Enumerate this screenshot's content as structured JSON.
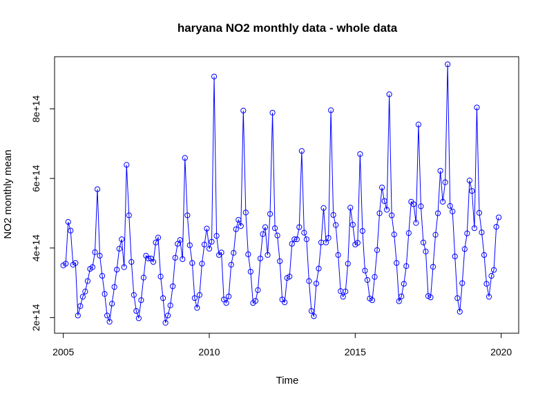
{
  "chart_data": {
    "type": "line",
    "title": "haryana NO2 monthly data - whole data",
    "xlabel": "Time",
    "ylabel": "NO2 monthly mean",
    "xlim": [
      2004.7,
      2020.6
    ],
    "ylim": [
      155000000000000.0,
      950000000000000.0
    ],
    "x_ticks": [
      2005,
      2010,
      2015,
      2020
    ],
    "x_tick_labels": [
      "2005",
      "2010",
      "2015",
      "2020"
    ],
    "y_ticks": [
      200000000000000.0,
      400000000000000.0,
      600000000000000.0,
      800000000000000.0
    ],
    "y_tick_labels": [
      "2e+14",
      "4e+14",
      "6e+14",
      "8e+14"
    ],
    "x_start": 2005,
    "x_step": 0.08333333,
    "series": [
      {
        "color": "#0000ff",
        "markers": "open-circle",
        "values": [
          350000000000000.0,
          355000000000000.0,
          475000000000000.0,
          450000000000000.0,
          352000000000000.0,
          357000000000000.0,
          206000000000000.0,
          233000000000000.0,
          260000000000000.0,
          275000000000000.0,
          305000000000000.0,
          340000000000000.0,
          345000000000000.0,
          388000000000000.0,
          569000000000000.0,
          378000000000000.0,
          320000000000000.0,
          268000000000000.0,
          206000000000000.0,
          188000000000000.0,
          240000000000000.0,
          288000000000000.0,
          338000000000000.0,
          398000000000000.0,
          425000000000000.0,
          345000000000000.0,
          639000000000000.0,
          494000000000000.0,
          360000000000000.0,
          265000000000000.0,
          219000000000000.0,
          198000000000000.0,
          250000000000000.0,
          315000000000000.0,
          378000000000000.0,
          370000000000000.0,
          370000000000000.0,
          360000000000000.0,
          416000000000000.0,
          430000000000000.0,
          318000000000000.0,
          256000000000000.0,
          185000000000000.0,
          206000000000000.0,
          235000000000000.0,
          290000000000000.0,
          372000000000000.0,
          412000000000000.0,
          423000000000000.0,
          368000000000000.0,
          659000000000000.0,
          494000000000000.0,
          408000000000000.0,
          357000000000000.0,
          256000000000000.0,
          228000000000000.0,
          265000000000000.0,
          355000000000000.0,
          410000000000000.0,
          456000000000000.0,
          398000000000000.0,
          418000000000000.0,
          893000000000000.0,
          435000000000000.0,
          380000000000000.0,
          387000000000000.0,
          252000000000000.0,
          242000000000000.0,
          261000000000000.0,
          352000000000000.0,
          386000000000000.0,
          454000000000000.0,
          481000000000000.0,
          463000000000000.0,
          795000000000000.0,
          502000000000000.0,
          382000000000000.0,
          332000000000000.0,
          242000000000000.0,
          248000000000000.0,
          279000000000000.0,
          370000000000000.0,
          440000000000000.0,
          460000000000000.0,
          380000000000000.0,
          498000000000000.0,
          789000000000000.0,
          457000000000000.0,
          436000000000000.0,
          362000000000000.0,
          252000000000000.0,
          244000000000000.0,
          314000000000000.0,
          318000000000000.0,
          412000000000000.0,
          425000000000000.0,
          425000000000000.0,
          460000000000000.0,
          679000000000000.0,
          444000000000000.0,
          425000000000000.0,
          305000000000000.0,
          219000000000000.0,
          204000000000000.0,
          298000000000000.0,
          341000000000000.0,
          416000000000000.0,
          515000000000000.0,
          416000000000000.0,
          429000000000000.0,
          796000000000000.0,
          495000000000000.0,
          466000000000000.0,
          380000000000000.0,
          276000000000000.0,
          260000000000000.0,
          275000000000000.0,
          355000000000000.0,
          516000000000000.0,
          467000000000000.0,
          410000000000000.0,
          415000000000000.0,
          670000000000000.0,
          449000000000000.0,
          335000000000000.0,
          308000000000000.0,
          255000000000000.0,
          250000000000000.0,
          317000000000000.0,
          394000000000000.0,
          500000000000000.0,
          574000000000000.0,
          535000000000000.0,
          510000000000000.0,
          842000000000000.0,
          494000000000000.0,
          439000000000000.0,
          357000000000000.0,
          247000000000000.0,
          261000000000000.0,
          297000000000000.0,
          348000000000000.0,
          443000000000000.0,
          533000000000000.0,
          526000000000000.0,
          472000000000000.0,
          755000000000000.0,
          520000000000000.0,
          416000000000000.0,
          390000000000000.0,
          262000000000000.0,
          258000000000000.0,
          346000000000000.0,
          438000000000000.0,
          500000000000000.0,
          622000000000000.0,
          533000000000000.0,
          589000000000000.0,
          928000000000000.0,
          521000000000000.0,
          505000000000000.0,
          376000000000000.0,
          256000000000000.0,
          217000000000000.0,
          299000000000000.0,
          397000000000000.0,
          442000000000000.0,
          594000000000000.0,
          564000000000000.0,
          457000000000000.0,
          804000000000000.0,
          501000000000000.0,
          445000000000000.0,
          380000000000000.0,
          297000000000000.0,
          260000000000000.0,
          320000000000000.0,
          337000000000000.0,
          461000000000000.0,
          488000000000000.0
        ]
      }
    ]
  }
}
